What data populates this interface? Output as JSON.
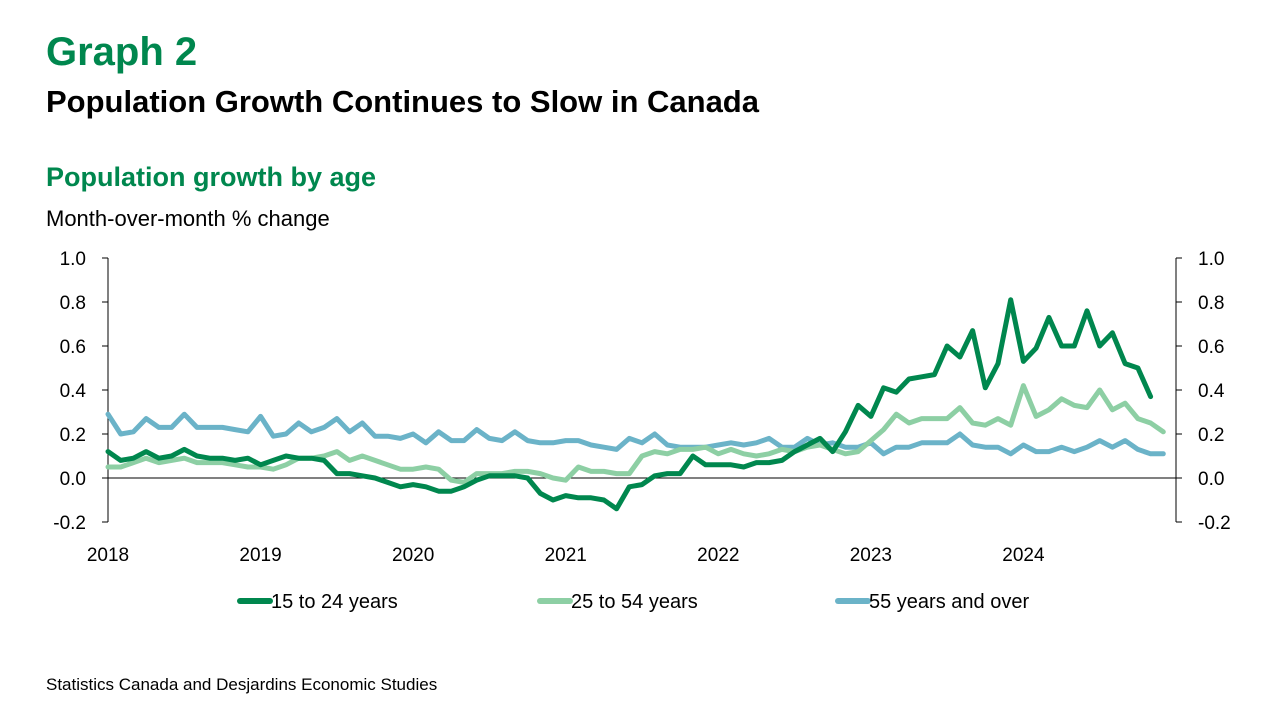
{
  "header": {
    "graph_label": "Graph 2",
    "title": "Population Growth Continues to Slow in Canada"
  },
  "footer": {
    "source": "Statistics Canada and Desjardins Economic Studies"
  },
  "chart_data": {
    "type": "line",
    "title": "Population growth by age",
    "ylabel": "Month-over-month % change",
    "ylim": [
      -0.2,
      1.0
    ],
    "yticks": [
      "1.0",
      "0.8",
      "0.6",
      "0.4",
      "0.2",
      "0.0",
      "-0.2"
    ],
    "xlim": [
      "2018-01",
      "2024-12"
    ],
    "xticks": [
      "2018",
      "2019",
      "2020",
      "2021",
      "2022",
      "2023",
      "2024"
    ],
    "grid": false,
    "secondary_y_axis": true,
    "legend": "bottom",
    "series": [
      {
        "name": "15 to 24 years",
        "color": "#00874E",
        "values": [
          0.12,
          0.08,
          0.09,
          0.12,
          0.09,
          0.1,
          0.13,
          0.1,
          0.09,
          0.09,
          0.08,
          0.09,
          0.06,
          0.08,
          0.1,
          0.09,
          0.09,
          0.08,
          0.02,
          0.02,
          0.01,
          0.0,
          -0.02,
          -0.04,
          -0.03,
          -0.04,
          -0.06,
          -0.06,
          -0.04,
          -0.01,
          0.01,
          0.01,
          0.01,
          0.0,
          -0.07,
          -0.1,
          -0.08,
          -0.09,
          -0.09,
          -0.1,
          -0.14,
          -0.04,
          -0.03,
          0.01,
          0.02,
          0.02,
          0.1,
          0.06,
          0.06,
          0.06,
          0.05,
          0.07,
          0.07,
          0.08,
          0.12,
          0.15,
          0.18,
          0.12,
          0.21,
          0.33,
          0.28,
          0.41,
          0.39,
          0.45,
          0.46,
          0.47,
          0.6,
          0.55,
          0.67,
          0.41,
          0.52,
          0.81,
          0.53,
          0.59,
          0.73,
          0.6,
          0.6,
          0.76,
          0.6,
          0.66,
          0.52,
          0.5,
          0.37
        ]
      },
      {
        "name": "25 to 54 years",
        "color": "#8DCFA4",
        "values": [
          0.05,
          0.05,
          0.07,
          0.09,
          0.07,
          0.08,
          0.09,
          0.07,
          0.07,
          0.07,
          0.06,
          0.05,
          0.05,
          0.04,
          0.06,
          0.09,
          0.09,
          0.1,
          0.12,
          0.08,
          0.1,
          0.08,
          0.06,
          0.04,
          0.04,
          0.05,
          0.04,
          -0.01,
          -0.02,
          0.02,
          0.02,
          0.02,
          0.03,
          0.03,
          0.02,
          0.0,
          -0.01,
          0.05,
          0.03,
          0.03,
          0.02,
          0.02,
          0.1,
          0.12,
          0.11,
          0.13,
          0.13,
          0.14,
          0.11,
          0.13,
          0.11,
          0.1,
          0.11,
          0.13,
          0.12,
          0.14,
          0.15,
          0.13,
          0.11,
          0.12,
          0.17,
          0.22,
          0.29,
          0.25,
          0.27,
          0.27,
          0.27,
          0.32,
          0.25,
          0.24,
          0.27,
          0.24,
          0.42,
          0.28,
          0.31,
          0.36,
          0.33,
          0.32,
          0.4,
          0.31,
          0.34,
          0.27,
          0.25,
          0.21
        ]
      },
      {
        "name": "55 years and over",
        "color": "#6BB3C8",
        "values": [
          0.29,
          0.2,
          0.21,
          0.27,
          0.23,
          0.23,
          0.29,
          0.23,
          0.23,
          0.23,
          0.22,
          0.21,
          0.28,
          0.19,
          0.2,
          0.25,
          0.21,
          0.23,
          0.27,
          0.21,
          0.25,
          0.19,
          0.19,
          0.18,
          0.2,
          0.16,
          0.21,
          0.17,
          0.17,
          0.22,
          0.18,
          0.17,
          0.21,
          0.17,
          0.16,
          0.16,
          0.17,
          0.17,
          0.15,
          0.14,
          0.13,
          0.18,
          0.16,
          0.2,
          0.15,
          0.14,
          0.14,
          0.14,
          0.15,
          0.16,
          0.15,
          0.16,
          0.18,
          0.14,
          0.14,
          0.18,
          0.15,
          0.16,
          0.14,
          0.14,
          0.16,
          0.11,
          0.14,
          0.14,
          0.16,
          0.16,
          0.16,
          0.2,
          0.15,
          0.14,
          0.14,
          0.11,
          0.15,
          0.12,
          0.12,
          0.14,
          0.12,
          0.14,
          0.17,
          0.14,
          0.17,
          0.13,
          0.11,
          0.11
        ]
      }
    ]
  }
}
